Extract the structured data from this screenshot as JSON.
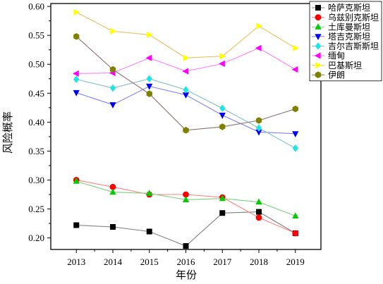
{
  "chart_data": {
    "type": "line",
    "xlabel": "年份",
    "ylabel": "风险概率",
    "x": [
      2013,
      2014,
      2015,
      2016,
      2017,
      2018,
      2019
    ],
    "x_ticks": [
      "2013",
      "2014",
      "2015",
      "2016",
      "2017",
      "2018",
      "2019"
    ],
    "xlim": [
      2012.3,
      2019.7
    ],
    "ylim": [
      0.18,
      0.605
    ],
    "y_ticks": [
      "0.20",
      "0.25",
      "0.30",
      "0.35",
      "0.40",
      "0.45",
      "0.50",
      "0.55",
      "0.60"
    ],
    "grid": false,
    "legend_position": "top-right",
    "series": [
      {
        "name": "哈萨克斯坦",
        "marker": "square",
        "color": "#000000",
        "line_color": "#7f7f7f",
        "values": [
          0.222,
          0.219,
          0.211,
          0.186,
          0.243,
          0.245,
          0.208
        ]
      },
      {
        "name": "乌兹别克斯坦",
        "marker": "circle",
        "color": "#ff0000",
        "line_color": "#ff8080",
        "values": [
          0.3,
          0.288,
          0.275,
          0.275,
          0.27,
          0.235,
          0.208
        ]
      },
      {
        "name": "土库曼斯坦",
        "marker": "triangle-up",
        "color": "#00cc00",
        "line_color": "#80d080",
        "values": [
          0.298,
          0.279,
          0.277,
          0.266,
          0.268,
          0.262,
          0.238
        ]
      },
      {
        "name": "塔吉克斯坦",
        "marker": "triangle-down",
        "color": "#0000ee",
        "line_color": "#8080ff",
        "values": [
          0.451,
          0.43,
          0.462,
          0.447,
          0.412,
          0.383,
          0.38
        ]
      },
      {
        "name": "吉尔吉斯斯坦",
        "marker": "diamond",
        "color": "#1ee6e6",
        "line_color": "#80c0c0",
        "values": [
          0.474,
          0.459,
          0.475,
          0.456,
          0.424,
          0.39,
          0.355
        ]
      },
      {
        "name": "缅甸",
        "marker": "triangle-left",
        "color": "#ff00ff",
        "line_color": "#ff80ff",
        "values": [
          0.484,
          0.485,
          0.511,
          0.488,
          0.501,
          0.528,
          0.491
        ]
      },
      {
        "name": "巴基斯坦",
        "marker": "triangle-right",
        "color": "#ffff00",
        "line_color": "#e8c060",
        "values": [
          0.59,
          0.557,
          0.551,
          0.511,
          0.514,
          0.566,
          0.528
        ]
      },
      {
        "name": "伊朗",
        "marker": "hexagon",
        "color": "#808000",
        "line_color": "#8a7070",
        "values": [
          0.548,
          0.491,
          0.449,
          0.386,
          0.392,
          0.403,
          0.423
        ]
      }
    ]
  }
}
